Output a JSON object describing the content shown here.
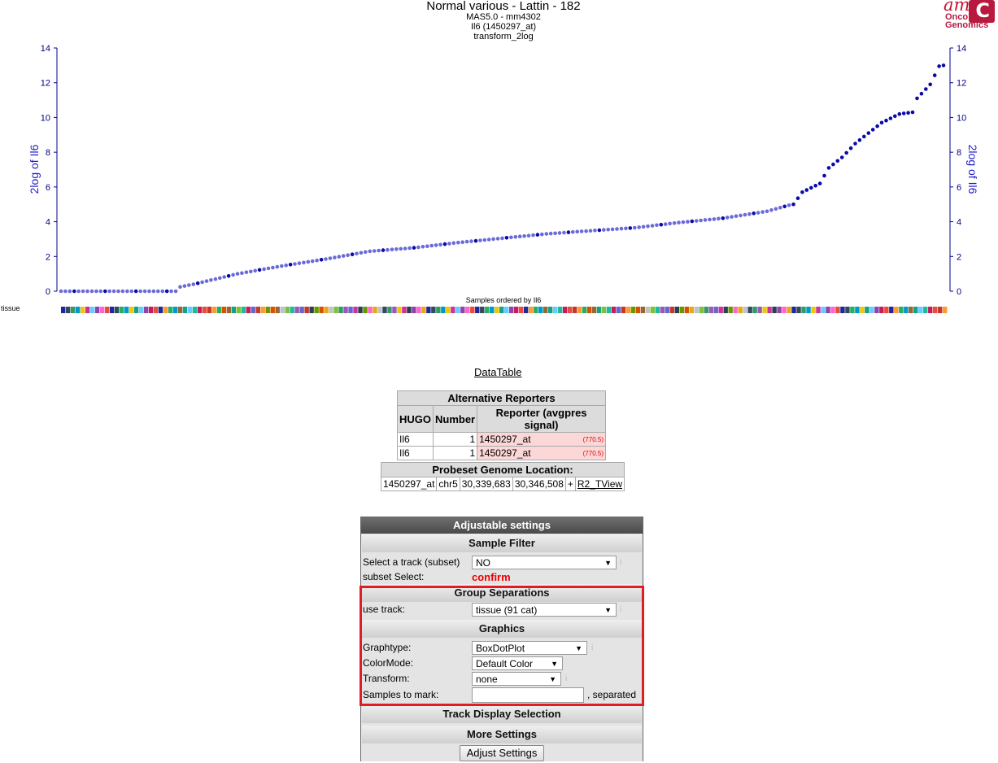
{
  "header": {
    "title": "Normal various  - Lattin - 182",
    "subtitle1": "MAS5.0 - mm4302",
    "subtitle2": "Il6 (1450297_at)",
    "subtitle3": "transform_2log"
  },
  "logo": {
    "top": "am",
    "line1": "Onco",
    "line2": "Genomics"
  },
  "colors": {
    "dot_light": "#6b6bd8",
    "dot_dark": "#0a0aa8",
    "axis": "#00008b",
    "highlight": "#e01c24"
  },
  "chart_data": {
    "type": "scatter",
    "title": "Normal various  - Lattin - 182",
    "ylabel_left": "2log of Il6",
    "ylabel_right": "2log of Il6",
    "xlabel": "Samples ordered by Il6",
    "ylim": [
      0,
      14
    ],
    "yticks": [
      0,
      2,
      4,
      6,
      8,
      10,
      12,
      14
    ],
    "track_label": "tissue",
    "n_samples": 182,
    "anchors": [
      [
        0,
        0
      ],
      [
        26,
        0
      ],
      [
        27,
        0.25
      ],
      [
        30,
        0.4
      ],
      [
        40,
        1.0
      ],
      [
        50,
        1.45
      ],
      [
        60,
        1.85
      ],
      [
        70,
        2.3
      ],
      [
        80,
        2.5
      ],
      [
        90,
        2.8
      ],
      [
        100,
        3.05
      ],
      [
        110,
        3.3
      ],
      [
        120,
        3.48
      ],
      [
        130,
        3.65
      ],
      [
        140,
        3.95
      ],
      [
        150,
        4.2
      ],
      [
        160,
        4.6
      ],
      [
        165,
        4.95
      ],
      [
        166,
        5.0
      ],
      [
        168,
        5.7
      ],
      [
        172,
        6.2
      ],
      [
        174,
        7.1
      ],
      [
        177,
        7.7
      ],
      [
        180,
        8.5
      ],
      [
        184,
        9.3
      ],
      [
        186,
        9.7
      ],
      [
        190,
        10.2
      ],
      [
        193,
        10.3
      ],
      [
        194,
        11.1
      ],
      [
        197,
        11.9
      ],
      [
        199,
        12.95
      ],
      [
        200,
        13.0
      ]
    ]
  },
  "datatable_link": "DataTable",
  "alt_reporters": {
    "title": "Alternative Reporters",
    "headers": [
      "HUGO",
      "Number",
      "Reporter (avgpres signal)"
    ],
    "rows": [
      {
        "hugo": "Il6",
        "number": "1",
        "reporter": "1450297_at",
        "signal": "(770.5)"
      },
      {
        "hugo": "Il6",
        "number": "1",
        "reporter": "1450297_at",
        "signal": "(770.5)"
      }
    ]
  },
  "genome": {
    "title": "Probeset Genome Location:",
    "probe": "1450297_at",
    "chr": "chr5",
    "start": "30,339,683",
    "end": "30,346,508",
    "strand": "+",
    "link": "R2_TView"
  },
  "settings": {
    "title": "Adjustable settings",
    "sample_filter": "Sample Filter",
    "select_track_label": "Select a track (subset)",
    "select_track_value": "NO",
    "subset_select_label": "subset Select:",
    "confirm": "confirm",
    "group_separations": "Group Separations",
    "use_track_label": "use track:",
    "use_track_value": "tissue (91 cat)",
    "graphics": "Graphics",
    "graphtype_label": "Graphtype:",
    "graphtype_value": "BoxDotPlot",
    "colormode_label": "ColorMode:",
    "colormode_value": "Default Color",
    "transform_label": "Transform:",
    "transform_value": "none",
    "samples_label": "Samples to mark:",
    "samples_value": "",
    "separated": ", separated",
    "track_display": "Track Display Selection",
    "more_settings": "More Settings",
    "adjust_button": "Adjust Settings"
  }
}
